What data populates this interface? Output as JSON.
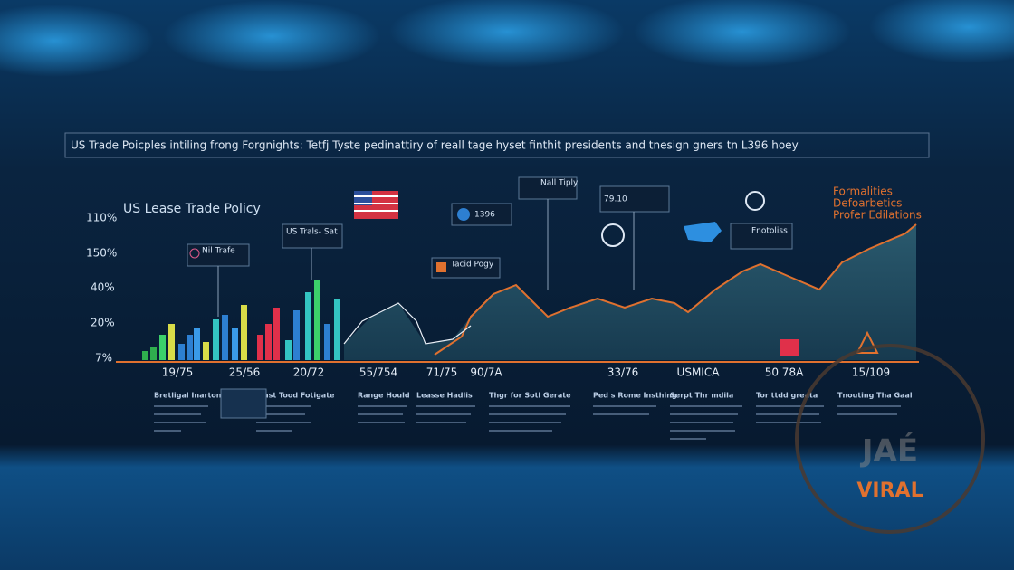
{
  "header": {
    "title": "US Trade Poicples intiling frong Forgnights: Tetfj Tyste pedinattiry of reall tage hyset finthit presidents and tnesign gners tn L396 hoey"
  },
  "chart": {
    "title": "US Lease Trade Policy",
    "y_labels": [
      "110%",
      "150%",
      "40%",
      "20%",
      "7%"
    ],
    "x_labels": [
      "19/75",
      "25/56",
      "20/72",
      "55/754",
      "71/75",
      "90/7A",
      "33/76",
      "USMICA",
      "50 78A",
      "15/109"
    ],
    "callouts": [
      "Nil Trafe",
      "US Trals- Sat",
      "1396",
      "Tacid Pogy",
      "Nall Tiply",
      "79.10",
      "Fnotoliss"
    ],
    "corner_labels": [
      "Formalities",
      "Defoarbetics",
      "Profer Edilations"
    ]
  },
  "columns": [
    "Bretligal Inarton",
    "Fiast Tood Fotigate",
    "Range Hould",
    "Leasse Hadlis",
    "Thgr for Sotl Gerate",
    "Ped s Rome Insthing",
    "Serpt Thr mdila",
    "Tor ttdd greata",
    "Tnouting Tha Gaal"
  ],
  "watermark": {
    "top": "JAÉ",
    "bottom": "VIRAL"
  }
}
